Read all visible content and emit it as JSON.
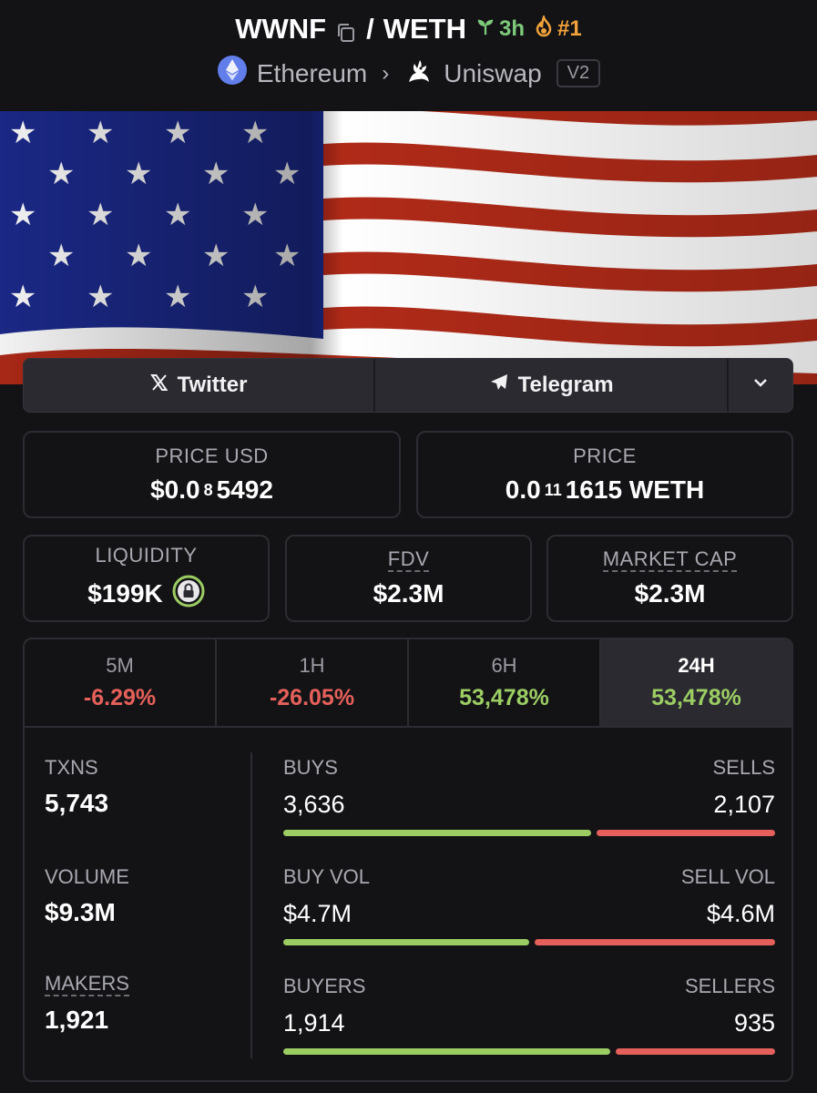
{
  "header": {
    "base_token": "WWNF",
    "separator": "/",
    "quote_token": "WETH",
    "age": "3h",
    "rank": "#1",
    "chain": "Ethereum",
    "dex": "Uniswap",
    "dex_version": "V2"
  },
  "social": {
    "twitter_label": "Twitter",
    "telegram_label": "Telegram"
  },
  "prices": {
    "price_usd_label": "PRICE USD",
    "price_usd_prefix": "$0.0",
    "price_usd_zeros": "8",
    "price_usd_digits": "5492",
    "price_label": "PRICE",
    "price_prefix": "0.0",
    "price_zeros": "11",
    "price_digits": "1615 WETH"
  },
  "metrics": {
    "liquidity_label": "LIQUIDITY",
    "liquidity_value": "$199K",
    "fdv_label": "FDV",
    "fdv_value": "$2.3M",
    "mcap_label": "MARKET CAP",
    "mcap_value": "$2.3M"
  },
  "tabs": [
    {
      "label": "5M",
      "value": "-6.29%",
      "trend": "neg"
    },
    {
      "label": "1H",
      "value": "-26.05%",
      "trend": "neg"
    },
    {
      "label": "6H",
      "value": "53,478%",
      "trend": "pos"
    },
    {
      "label": "24H",
      "value": "53,478%",
      "trend": "pos",
      "active": true
    }
  ],
  "stats": {
    "txns_label": "TXNS",
    "txns_value": "5,743",
    "buys_label": "BUYS",
    "buys_value": "3,636",
    "sells_label": "SELLS",
    "sells_value": "2,107",
    "buys_fraction": 0.633,
    "volume_label": "VOLUME",
    "volume_value": "$9.3M",
    "buyvol_label": "BUY VOL",
    "buyvol_value": "$4.7M",
    "sellvol_label": "SELL VOL",
    "sellvol_value": "$4.6M",
    "buyvol_fraction": 0.505,
    "makers_label": "MAKERS",
    "makers_value": "1,921",
    "buyers_label": "BUYERS",
    "buyers_value": "1,914",
    "sellers_label": "SELLERS",
    "sellers_value": "935",
    "buyers_fraction": 0.672
  },
  "colors": {
    "positive": "#9ccd63",
    "negative": "#e5605a",
    "age": "#7ec97a",
    "rank": "#f2a23a",
    "background": "#131316"
  },
  "icons": {
    "copy": "copy-icon",
    "age": "seedling-icon",
    "rank": "flame-icon",
    "chain": "ethereum-icon",
    "dex": "unicorn-icon",
    "twitter": "x-logo-icon",
    "telegram": "paper-plane-icon",
    "more": "chevron-down-icon",
    "liquidity_lock": "lock-icon"
  }
}
